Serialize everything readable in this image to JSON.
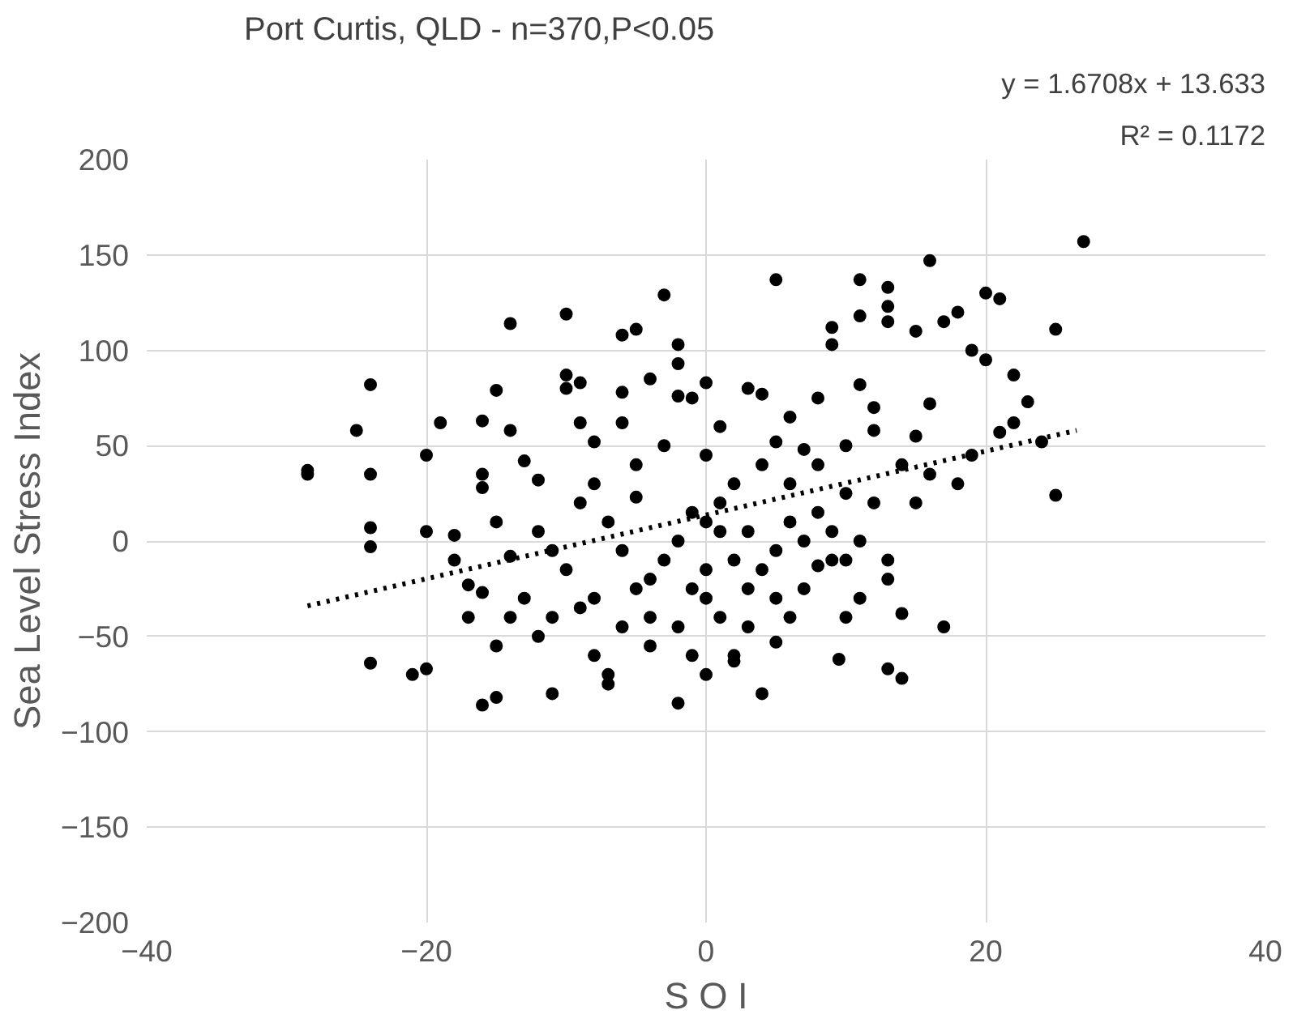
{
  "chart_data": {
    "type": "scatter",
    "title": "Port Curtis, QLD - n=370,P<0.05",
    "xlabel": "S O I",
    "ylabel": "Sea Level Stress Index",
    "xlim": [
      -40,
      40
    ],
    "xticks": [
      -40,
      -20,
      0,
      20,
      40
    ],
    "ylim": [
      -200,
      200
    ],
    "yticks": [
      -200,
      -150,
      -100,
      -50,
      0,
      50,
      100,
      150,
      200
    ],
    "grid": true,
    "annotations": [
      "y = 1.6708x + 13.633",
      "R² = 0.1172"
    ],
    "series": [
      {
        "color": "#000000",
        "marker": "circle",
        "x": [
          -28.5,
          -28.5,
          -24,
          -25,
          -24,
          -24,
          -24,
          -24,
          -21,
          -20,
          -20,
          -19,
          -20,
          -18,
          -18,
          -17,
          -16,
          -16,
          -16,
          -15,
          -16,
          -15,
          -15,
          -16,
          -14,
          -14,
          -14,
          -13,
          -12,
          -12,
          -11,
          -10,
          -10,
          -10,
          -9,
          -9,
          -8,
          -8,
          -8,
          -7,
          -6,
          -5,
          -6,
          -6,
          -5,
          -5,
          -4,
          -3,
          -4,
          -4,
          -2,
          -2,
          -2,
          -1,
          -2,
          0,
          0,
          0,
          1,
          2,
          3,
          4,
          5,
          5,
          6,
          6,
          7,
          8,
          8,
          9,
          9,
          10,
          11,
          11,
          11,
          12,
          12,
          13,
          13,
          13,
          14,
          14,
          14,
          13,
          15,
          16,
          17,
          16,
          17,
          18,
          19,
          20,
          20,
          21,
          21,
          22,
          23,
          22,
          24,
          25,
          25,
          27,
          9.5,
          10,
          11,
          8,
          9,
          10,
          13,
          13,
          9,
          7,
          5,
          2,
          0,
          -1,
          3,
          4,
          -8,
          -7,
          -9,
          -10,
          -11,
          -12,
          -13,
          -14,
          -5,
          -3,
          -2,
          -1,
          1,
          2,
          3,
          4,
          5,
          -3,
          -6,
          0,
          1,
          3,
          6,
          7,
          8,
          10,
          11,
          12,
          -9,
          -7,
          2,
          -4,
          6,
          -2,
          5,
          -11,
          -6,
          -1,
          4,
          0,
          1,
          -15,
          -17,
          15,
          15,
          16,
          18,
          19
        ],
        "values": [
          37,
          35,
          82,
          58,
          35,
          7,
          -3,
          -64,
          -70,
          5,
          45,
          62,
          -67,
          3,
          -10,
          -23,
          -27,
          35,
          28,
          79,
          63,
          -55,
          -82,
          -86,
          114,
          58,
          -40,
          42,
          32,
          -50,
          -80,
          119,
          87,
          80,
          83,
          62,
          52,
          30,
          -30,
          -75,
          108,
          111,
          78,
          62,
          40,
          23,
          85,
          129,
          -40,
          -55,
          103,
          93,
          76,
          75,
          -85,
          83,
          45,
          10,
          60,
          -60,
          80,
          77,
          137,
          52,
          10,
          65,
          48,
          40,
          75,
          112,
          103,
          25,
          137,
          118,
          82,
          70,
          58,
          133,
          123,
          115,
          40,
          -38,
          -72,
          -67,
          110,
          147,
          115,
          72,
          -45,
          120,
          100,
          130,
          95,
          127,
          57,
          87,
          73,
          62,
          52,
          111,
          24,
          157,
          -62,
          -40,
          -30,
          -13,
          -10,
          -10,
          -10,
          -20,
          5,
          -25,
          -53,
          -63,
          -70,
          -60,
          -45,
          -80,
          -60,
          -70,
          -35,
          -15,
          -5,
          5,
          -30,
          -8,
          -25,
          -10,
          0,
          15,
          20,
          30,
          5,
          -15,
          -5,
          50,
          -5,
          -30,
          -40,
          -25,
          30,
          0,
          15,
          50,
          0,
          20,
          20,
          10,
          -10,
          -20,
          -40,
          -45,
          -30,
          -40,
          -45,
          -25,
          40,
          -15,
          5,
          10,
          -40,
          20,
          55,
          35,
          30,
          45
        ]
      },
      {
        "type": "line",
        "color": "#000000",
        "line_style": "dotted",
        "marker": "none",
        "x": [
          -28.5,
          26.5
        ],
        "values": [
          -34,
          58
        ]
      }
    ]
  }
}
